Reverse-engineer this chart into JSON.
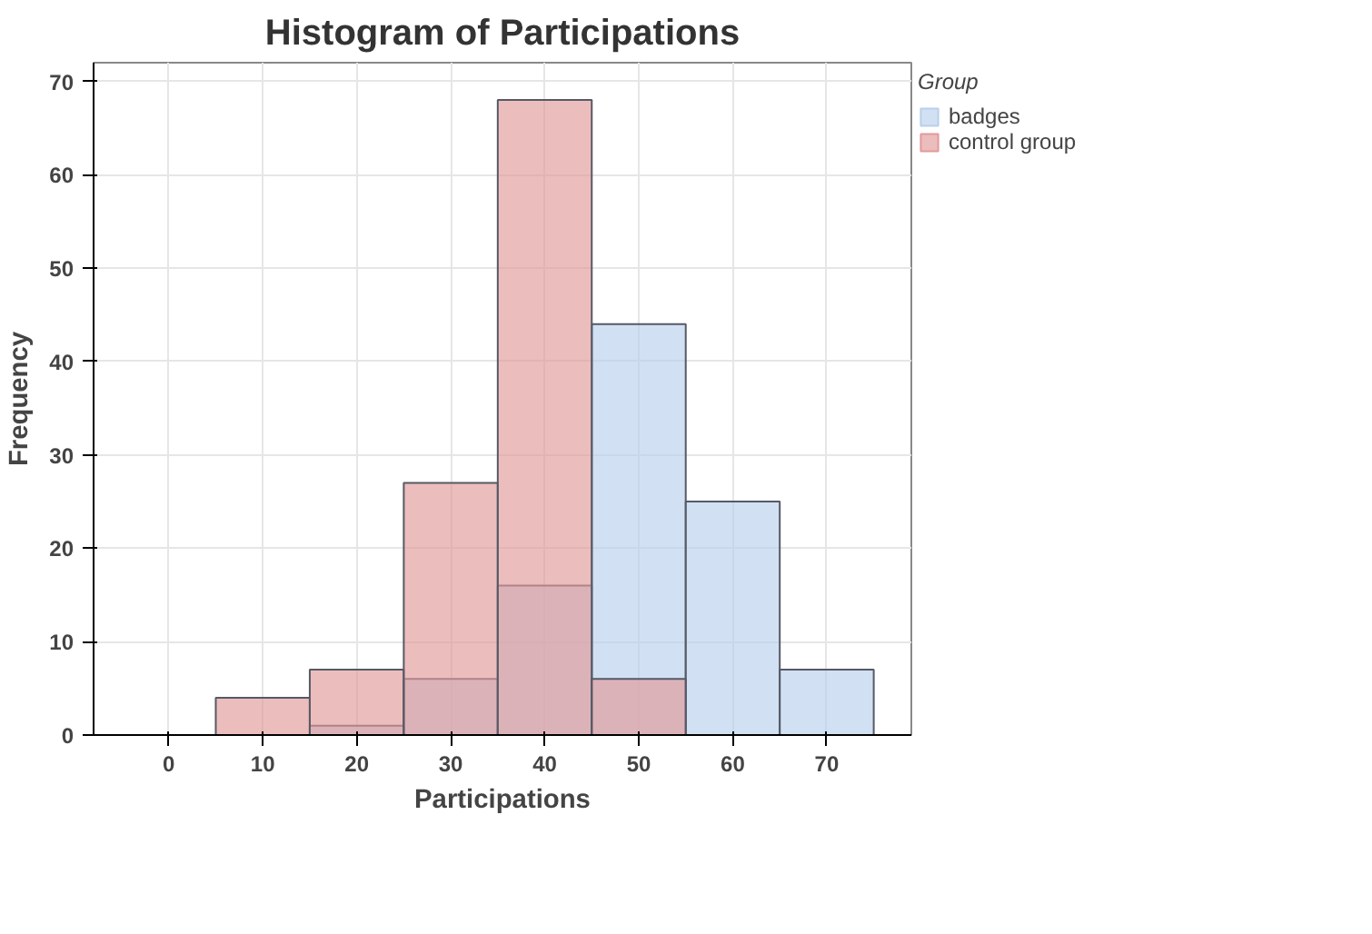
{
  "chart_data": {
    "type": "histogram",
    "title": "Histogram of Participations",
    "xlabel": "Participations",
    "ylabel": "Frequency",
    "legend_title": "Group",
    "bins": [
      -5,
      5,
      15,
      25,
      35,
      45,
      55,
      65,
      75
    ],
    "series": [
      {
        "name": "badges",
        "color": "#b9cfeb",
        "values": [
          0,
          0,
          1,
          6,
          16,
          44,
          25,
          7
        ]
      },
      {
        "name": "control group",
        "color": "#e29a9a",
        "values": [
          0,
          4,
          7,
          27,
          68,
          6,
          0,
          0
        ]
      }
    ],
    "xlim": [
      -8,
      79
    ],
    "ylim": [
      0,
      72
    ],
    "xticks": [
      0,
      10,
      20,
      30,
      40,
      50,
      60,
      70
    ],
    "yticks": [
      0,
      10,
      20,
      30,
      40,
      50,
      60,
      70
    ],
    "grid": true,
    "legend": "top right"
  }
}
